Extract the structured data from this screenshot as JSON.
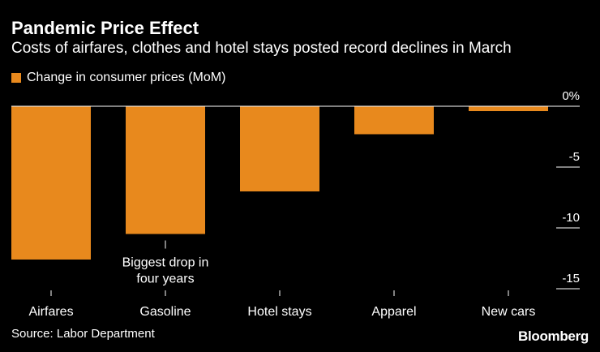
{
  "header": {
    "title": "Pandemic Price Effect",
    "subtitle": "Costs of airfares, clothes and hotel stays posted record declines in March"
  },
  "footer": {
    "source": "Source: Labor Department",
    "brand": "Bloomberg"
  },
  "colors": {
    "background": "#000000",
    "bar": "#e8891d",
    "text": "#ffffff",
    "axis": "#ffffff"
  },
  "chart_data": {
    "type": "bar",
    "title": "Pandemic Price Effect",
    "subtitle": "Costs of airfares, clothes and hotel stays posted record declines in March",
    "categories": [
      "Airfares",
      "Gasoline",
      "Hotel stays",
      "Apparel",
      "New cars"
    ],
    "series": [
      {
        "name": "Change in consumer prices (MoM)",
        "values": [
          -12.6,
          -10.5,
          -7.0,
          -2.3,
          -0.4
        ]
      }
    ],
    "ylim": [
      -15,
      0
    ],
    "yticks": [
      {
        "value": 0,
        "label": "0%"
      },
      {
        "value": -5,
        "label": "-5"
      },
      {
        "value": -10,
        "label": "-10"
      },
      {
        "value": -15,
        "label": "-15"
      }
    ],
    "y_axis_position": "right",
    "legend_position": "top-left",
    "grid": false,
    "annotations": [
      {
        "category": "Gasoline",
        "lines": [
          "Biggest drop in",
          "four years"
        ]
      }
    ]
  }
}
